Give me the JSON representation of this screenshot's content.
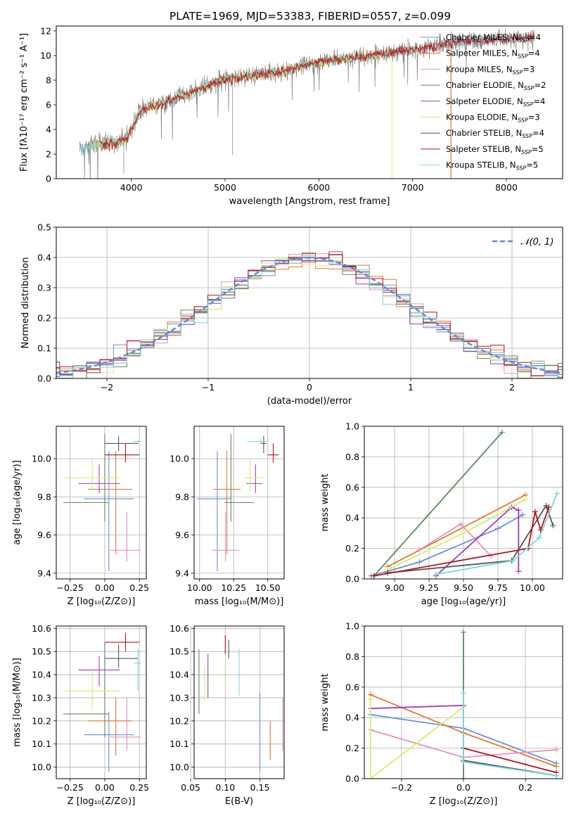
{
  "figure": {
    "title": "PLATE=1969, MJD=53383, FIBERID=0557, z=0.099"
  },
  "colors": {
    "chabrier_miles": "#6a8fd8",
    "salpeter_miles": "#e27a2c",
    "kroupa_miles": "#e890c0",
    "chabrier_elodie": "#5a8a60",
    "salpeter_elodie": "#9a3ec2",
    "kroupa_elodie": "#d6ec6a",
    "chabrier_stelib": "#555555",
    "salpeter_stelib": "#b5141a",
    "kroupa_stelib": "#7ad8e0"
  },
  "chart_data": [
    {
      "id": "spectrum",
      "type": "line",
      "xlabel": "wavelength [Angstrom, rest frame]",
      "ylabel": "Flux [fλ10⁻¹⁷ erg cm⁻² s⁻¹ A⁻¹]",
      "xlim": [
        3200,
        8600
      ],
      "ylim": [
        0,
        12.4
      ],
      "xticks": [
        "4000",
        "5000",
        "6000",
        "7000",
        "8000"
      ],
      "yticks": [
        "0",
        "2",
        "4",
        "6",
        "8",
        "10",
        "12"
      ],
      "legend": "upper right",
      "series": [
        {
          "name": "Chabrier MILES, N_SSP=4",
          "label_main": "Chabrier MILES, N",
          "label_sub": "SSP",
          "label_tail": "=4",
          "color_key": "chabrier_miles"
        },
        {
          "name": "Salpeter MILES, N_SSP=4",
          "label_main": "Salpeter MILES, N",
          "label_sub": "SSP",
          "label_tail": "=4",
          "color_key": "salpeter_miles"
        },
        {
          "name": "Kroupa MILES, N_SSP=3",
          "label_main": "Kroupa MILES, N",
          "label_sub": "SSP",
          "label_tail": "=3",
          "color_key": "kroupa_miles"
        },
        {
          "name": "Chabrier ELODIE, N_SSP=2",
          "label_main": "Chabrier ELODIE, N",
          "label_sub": "SSP",
          "label_tail": "=2",
          "color_key": "chabrier_elodie"
        },
        {
          "name": "Salpeter ELODIE, N_SSP=4",
          "label_main": "Salpeter ELODIE, N",
          "label_sub": "SSP",
          "label_tail": "=4",
          "color_key": "salpeter_elodie"
        },
        {
          "name": "Kroupa ELODIE, N_SSP=3",
          "label_main": "Kroupa ELODIE, N",
          "label_sub": "SSP",
          "label_tail": "=3",
          "color_key": "kroupa_elodie"
        },
        {
          "name": "Chabrier STELIB, N_SSP=4",
          "label_main": "Chabrier STELIB, N",
          "label_sub": "SSP",
          "label_tail": "=4",
          "color_key": "chabrier_stelib"
        },
        {
          "name": "Salpeter STELIB, N_SSP=5",
          "label_main": "Salpeter STELIB, N",
          "label_sub": "SSP",
          "label_tail": "=5",
          "color_key": "salpeter_stelib"
        },
        {
          "name": "Kroupa STELIB, N_SSP=5",
          "label_main": "Kroupa STELIB, N",
          "label_sub": "SSP",
          "label_tail": "=5",
          "color_key": "kroupa_stelib"
        }
      ],
      "data_trend": {
        "x": [
          3450,
          3600,
          3800,
          3950,
          4100,
          4300,
          4500,
          4700,
          4900,
          5100,
          5300,
          5500,
          5700,
          5900,
          6100,
          6300,
          6500,
          6700,
          6900,
          7100,
          7300,
          7500,
          7700,
          7900,
          8100,
          8300
        ],
        "y": [
          2.4,
          2.7,
          2.9,
          3.2,
          5.6,
          6.0,
          6.6,
          7.2,
          7.8,
          8.2,
          8.4,
          8.5,
          8.9,
          9.3,
          9.6,
          9.8,
          10.0,
          10.2,
          10.3,
          10.6,
          10.9,
          11.1,
          11.2,
          11.3,
          11.4,
          11.5
        ]
      }
    },
    {
      "id": "residuals",
      "type": "histogram",
      "xlabel": "(data-model)/error",
      "ylabel": "Normed distribution",
      "xlim": [
        -2.5,
        2.5
      ],
      "ylim": [
        0,
        0.5
      ],
      "xticks": [
        "−2",
        "−1",
        "0",
        "1",
        "2"
      ],
      "yticks": [
        "0.0",
        "0.1",
        "0.2",
        "0.3",
        "0.4",
        "0.5"
      ],
      "grid": true,
      "legend": "upper right",
      "reference_label": "𝒩(0, 1)",
      "reference_color": "#5b8bd6",
      "bin_width": 0.133
    },
    {
      "id": "age_vs_Z",
      "type": "errorbar",
      "xlabel": "Z [log₁₀(Z/Z⊙)]",
      "ylabel": "age  [log₁₀(age/yr)]",
      "xlim": [
        -0.35,
        0.3
      ],
      "ylim": [
        9.37,
        10.17
      ],
      "xticks": [
        "−0.25",
        "0.00",
        "0.25"
      ],
      "yticks": [
        "9.4",
        "9.6",
        "9.8",
        "10.0"
      ],
      "grid": true,
      "points": [
        {
          "key": "chabrier_miles",
          "x": 0.03,
          "xerr": [
            0.18,
            0.18
          ],
          "y": 9.79,
          "yerr": [
            0.38,
            0.25
          ]
        },
        {
          "key": "salpeter_miles",
          "x": 0.08,
          "xerr": [
            0.2,
            0.12
          ],
          "y": 9.84,
          "yerr": [
            0.34,
            0.2
          ]
        },
        {
          "key": "kroupa_miles",
          "x": 0.16,
          "xerr": [
            0.12,
            0.1
          ],
          "y": 9.52,
          "yerr": [
            0.06,
            0.2
          ]
        },
        {
          "key": "chabrier_elodie",
          "x": 0.0,
          "xerr": [
            0.3,
            0.03
          ],
          "y": 9.77,
          "yerr": [
            0.1,
            0.36
          ]
        },
        {
          "key": "salpeter_elodie",
          "x": -0.04,
          "xerr": [
            0.15,
            0.15
          ],
          "y": 9.87,
          "yerr": [
            0.05,
            0.1
          ]
        },
        {
          "key": "kroupa_elodie",
          "x": -0.09,
          "xerr": [
            0.21,
            0.2
          ],
          "y": 9.9,
          "yerr": [
            0.07,
            0.1
          ]
        },
        {
          "key": "chabrier_stelib",
          "x": 0.1,
          "xerr": [
            0.1,
            0.14
          ],
          "y": 10.08,
          "yerr": [
            0.04,
            0.04
          ]
        },
        {
          "key": "salpeter_stelib",
          "x": 0.15,
          "xerr": [
            0.15,
            0.1
          ],
          "y": 10.02,
          "yerr": [
            0.04,
            0.06
          ]
        },
        {
          "key": "kroupa_stelib",
          "x": 0.24,
          "xerr": [
            0.03,
            0.02
          ],
          "y": 10.09,
          "yerr": [
            0.01,
            0.01
          ]
        }
      ]
    },
    {
      "id": "age_vs_mass",
      "type": "errorbar",
      "xlabel": "mass [log₁₀(M/M⊙)]",
      "ylabel": "",
      "xlim": [
        9.96,
        10.62
      ],
      "ylim": [
        9.37,
        10.17
      ],
      "xticks": [
        "10.00",
        "10.25",
        "10.50"
      ],
      "yticks": [
        "9.4",
        "9.6",
        "9.8",
        "10.0"
      ],
      "grid": true,
      "points": [
        {
          "key": "chabrier_miles",
          "x": 10.13,
          "xerr": [
            0.15,
            0.1
          ],
          "y": 9.79,
          "yerr": [
            0.38,
            0.25
          ]
        },
        {
          "key": "salpeter_miles",
          "x": 10.2,
          "xerr": [
            0.1,
            0.1
          ],
          "y": 9.84,
          "yerr": [
            0.34,
            0.2
          ]
        },
        {
          "key": "kroupa_miles",
          "x": 10.19,
          "xerr": [
            0.1,
            0.1
          ],
          "y": 9.52,
          "yerr": [
            0.06,
            0.2
          ]
        },
        {
          "key": "chabrier_elodie",
          "x": 10.23,
          "xerr": [
            0.05,
            0.17
          ],
          "y": 9.77,
          "yerr": [
            0.1,
            0.36
          ]
        },
        {
          "key": "salpeter_elodie",
          "x": 10.41,
          "xerr": [
            0.07,
            0.05
          ],
          "y": 9.87,
          "yerr": [
            0.05,
            0.1
          ]
        },
        {
          "key": "kroupa_elodie",
          "x": 10.37,
          "xerr": [
            0.05,
            0.1
          ],
          "y": 9.9,
          "yerr": [
            0.07,
            0.1
          ]
        },
        {
          "key": "chabrier_stelib",
          "x": 10.47,
          "xerr": [
            0.02,
            0.02
          ],
          "y": 10.08,
          "yerr": [
            0.05,
            0.04
          ]
        },
        {
          "key": "salpeter_stelib",
          "x": 10.54,
          "xerr": [
            0.04,
            0.04
          ],
          "y": 10.02,
          "yerr": [
            0.04,
            0.06
          ]
        },
        {
          "key": "kroupa_stelib",
          "x": 10.45,
          "xerr": [
            0.1,
            0.05
          ],
          "y": 10.09,
          "yerr": [
            0.01,
            0.01
          ]
        }
      ]
    },
    {
      "id": "weight_vs_age",
      "type": "line",
      "xlabel": "age  [log₁₀(age/yr)]",
      "ylabel": "mass weight",
      "xlim": [
        8.78,
        10.22
      ],
      "ylim": [
        0,
        1
      ],
      "xticks": [
        "9.00",
        "9.25",
        "9.50",
        "9.75",
        "10.00"
      ],
      "yticks": [
        "0.0",
        "0.2",
        "0.4",
        "0.6",
        "0.8",
        "1.0"
      ],
      "grid": true,
      "series": [
        {
          "key": "chabrier_miles",
          "x": [
            8.83,
            9.18,
            9.75,
            9.93
          ],
          "y": [
            0.02,
            0.11,
            0.33,
            0.42
          ]
        },
        {
          "key": "salpeter_miles",
          "x": [
            8.95,
            9.95
          ],
          "y": [
            0.08,
            0.55
          ]
        },
        {
          "key": "kroupa_miles",
          "x": [
            9.18,
            9.48,
            9.7
          ],
          "y": [
            0.19,
            0.36,
            0.15
          ]
        },
        {
          "key": "chabrier_elodie",
          "x": [
            8.85,
            9.78
          ],
          "y": [
            0.02,
            0.96
          ]
        },
        {
          "key": "salpeter_elodie",
          "x": [
            9.3,
            9.85,
            9.9,
            9.9
          ],
          "y": [
            0.02,
            0.47,
            0.45,
            0.05
          ]
        },
        {
          "key": "kroupa_elodie",
          "x": [
            8.95,
            9.5,
            9.95
          ],
          "y": [
            0.06,
            0.3,
            0.52
          ]
        },
        {
          "key": "chabrier_stelib",
          "x": [
            8.95,
            9.85,
            10.1,
            10.15
          ],
          "y": [
            0.04,
            0.12,
            0.48,
            0.35
          ]
        },
        {
          "key": "salpeter_stelib",
          "x": [
            8.85,
            9.97,
            10.02,
            10.06,
            10.12
          ],
          "y": [
            0.02,
            0.2,
            0.44,
            0.32,
            0.47
          ]
        },
        {
          "key": "kroupa_stelib",
          "x": [
            9.3,
            9.86,
            10.05,
            10.18
          ],
          "y": [
            0.03,
            0.12,
            0.27,
            0.56
          ]
        }
      ]
    },
    {
      "id": "mass_vs_Z",
      "type": "errorbar",
      "xlabel": "Z [log₁₀(Z/Z⊙)]",
      "ylabel": "mass [log₁₀(M/M⊙)]",
      "xlim": [
        -0.35,
        0.3
      ],
      "ylim": [
        9.95,
        10.61
      ],
      "xticks": [
        "−0.25",
        "0.00",
        "0.25"
      ],
      "yticks": [
        "10.0",
        "10.1",
        "10.2",
        "10.3",
        "10.4",
        "10.5",
        "10.6"
      ],
      "grid": true,
      "points": [
        {
          "key": "chabrier_miles",
          "x": 0.03,
          "xerr": [
            0.18,
            0.18
          ],
          "y": 10.14,
          "yerr": [
            0.16,
            0.1
          ]
        },
        {
          "key": "salpeter_miles",
          "x": 0.08,
          "xerr": [
            0.2,
            0.12
          ],
          "y": 10.2,
          "yerr": [
            0.15,
            0.1
          ]
        },
        {
          "key": "kroupa_miles",
          "x": 0.16,
          "xerr": [
            0.12,
            0.1
          ],
          "y": 10.13,
          "yerr": [
            0.06,
            0.17
          ]
        },
        {
          "key": "chabrier_elodie",
          "x": 0.0,
          "xerr": [
            0.3,
            0.03
          ],
          "y": 10.23,
          "yerr": [
            0.1,
            0.31
          ]
        },
        {
          "key": "salpeter_elodie",
          "x": -0.04,
          "xerr": [
            0.15,
            0.15
          ],
          "y": 10.42,
          "yerr": [
            0.07,
            0.06
          ]
        },
        {
          "key": "kroupa_elodie",
          "x": -0.09,
          "xerr": [
            0.21,
            0.2
          ],
          "y": 10.33,
          "yerr": [
            0.08,
            0.08
          ]
        },
        {
          "key": "chabrier_stelib",
          "x": 0.1,
          "xerr": [
            0.1,
            0.14
          ],
          "y": 10.47,
          "yerr": [
            0.04,
            0.06
          ]
        },
        {
          "key": "salpeter_stelib",
          "x": 0.15,
          "xerr": [
            0.15,
            0.1
          ],
          "y": 10.54,
          "yerr": [
            0.04,
            0.04
          ]
        },
        {
          "key": "kroupa_stelib",
          "x": 0.24,
          "xerr": [
            0.03,
            0.02
          ],
          "y": 10.45,
          "yerr": [
            0.12,
            0.06
          ]
        }
      ]
    },
    {
      "id": "mass_vs_ebv",
      "type": "errorbar",
      "xlabel": "E(B-V)",
      "ylabel": "",
      "xlim": [
        0.055,
        0.185
      ],
      "ylim": [
        9.95,
        10.61
      ],
      "xticks": [
        "0.05",
        "0.10",
        "0.15"
      ],
      "yticks": [
        "10.0",
        "10.1",
        "10.2",
        "10.3",
        "10.4",
        "10.5",
        "10.6"
      ],
      "grid": true,
      "points": [
        {
          "key": "chabrier_miles",
          "x": 0.15,
          "xerr": [
            0,
            0
          ],
          "y": 10.14,
          "yerr": [
            0.16,
            0.18
          ]
        },
        {
          "key": "salpeter_miles",
          "x": 0.165,
          "xerr": [
            0,
            0
          ],
          "y": 10.1,
          "yerr": [
            0.07,
            0.1
          ]
        },
        {
          "key": "kroupa_miles",
          "x": 0.183,
          "xerr": [
            0,
            0
          ],
          "y": 10.18,
          "yerr": [
            0.11,
            0.12
          ]
        },
        {
          "key": "chabrier_elodie",
          "x": 0.062,
          "xerr": [
            0,
            0
          ],
          "y": 10.36,
          "yerr": [
            0.13,
            0.15
          ]
        },
        {
          "key": "salpeter_elodie",
          "x": 0.075,
          "xerr": [
            0,
            0
          ],
          "y": 10.39,
          "yerr": [
            0.09,
            0.1
          ]
        },
        {
          "key": "kroupa_elodie",
          "x": 0.07,
          "xerr": [
            0,
            0
          ],
          "y": 10.37,
          "yerr": [
            0.08,
            0.07
          ]
        },
        {
          "key": "chabrier_stelib",
          "x": 0.105,
          "xerr": [
            0,
            0
          ],
          "y": 10.51,
          "yerr": [
            0.04,
            0.04
          ]
        },
        {
          "key": "salpeter_stelib",
          "x": 0.1,
          "xerr": [
            0,
            0
          ],
          "y": 10.53,
          "yerr": [
            0.04,
            0.04
          ]
        },
        {
          "key": "kroupa_stelib",
          "x": 0.12,
          "xerr": [
            0,
            0
          ],
          "y": 10.41,
          "yerr": [
            0.1,
            0.1
          ]
        }
      ]
    },
    {
      "id": "weight_vs_Z",
      "type": "line",
      "xlabel": "Z [log₁₀(Z/Z⊙)]",
      "ylabel": "mass weight",
      "xlim": [
        -0.32,
        0.32
      ],
      "ylim": [
        0,
        1
      ],
      "xticks": [
        "−0.2",
        "0.0",
        "0.2"
      ],
      "yticks": [
        "0.0",
        "0.2",
        "0.4",
        "0.6",
        "0.8",
        "1.0"
      ],
      "grid": true,
      "series": [
        {
          "key": "chabrier_miles",
          "x": [
            -0.3,
            0.0,
            0.3
          ],
          "y": [
            0.42,
            0.33,
            0.1
          ]
        },
        {
          "key": "salpeter_miles",
          "x": [
            -0.3,
            0.0,
            0.3
          ],
          "y": [
            0.55,
            0.3,
            0.08
          ]
        },
        {
          "key": "kroupa_miles",
          "x": [
            -0.3,
            0.0,
            0.3
          ],
          "y": [
            0.32,
            0.14,
            0.19
          ]
        },
        {
          "key": "chabrier_elodie",
          "x": [
            0.0,
            0.0
          ],
          "y": [
            0.96,
            0.0
          ]
        },
        {
          "key": "salpeter_elodie",
          "x": [
            -0.3,
            0.0
          ],
          "y": [
            0.46,
            0.48
          ]
        },
        {
          "key": "kroupa_elodie",
          "x": [
            -0.3,
            -0.3,
            0.0
          ],
          "y": [
            0.52,
            0.0,
            0.47
          ]
        },
        {
          "key": "chabrier_stelib",
          "x": [
            0.0,
            0.3
          ],
          "y": [
            0.12,
            0.02
          ]
        },
        {
          "key": "salpeter_stelib",
          "x": [
            0.0,
            0.3
          ],
          "y": [
            0.2,
            0.04
          ]
        },
        {
          "key": "kroupa_stelib",
          "x": [
            0.0,
            0.0,
            0.3
          ],
          "y": [
            0.56,
            0.11,
            0.02
          ]
        }
      ]
    }
  ]
}
